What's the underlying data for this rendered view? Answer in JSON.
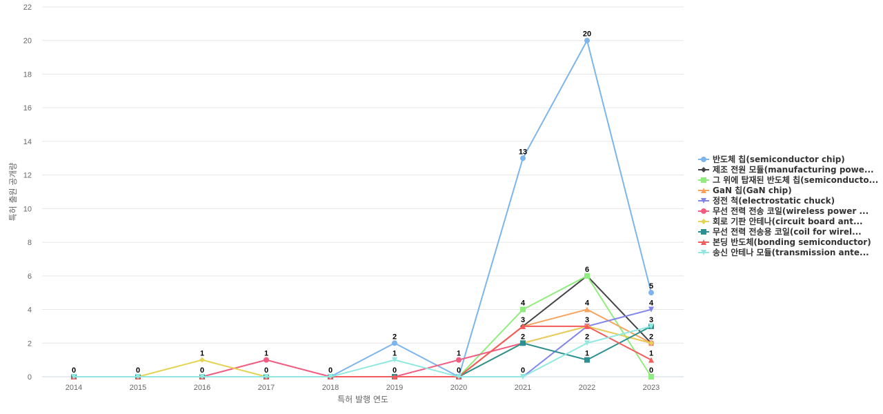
{
  "chart_data": {
    "type": "line",
    "title": "",
    "xlabel": "특허 발행 연도",
    "ylabel": "특허 출원 공개량",
    "x": [
      "2014",
      "2015",
      "2016",
      "2017",
      "2018",
      "2019",
      "2020",
      "2021",
      "2022",
      "2023"
    ],
    "ylim": [
      0,
      22
    ],
    "yticks": [
      0,
      2,
      4,
      6,
      8,
      10,
      12,
      14,
      16,
      18,
      20,
      22
    ],
    "grid": true,
    "legend_position": "right",
    "series": [
      {
        "name": "반도체 칩(semiconductor chip)",
        "color": "#7cb5ec",
        "marker": "circle",
        "values": [
          0,
          0,
          0,
          0,
          0,
          2,
          0,
          13,
          20,
          5
        ]
      },
      {
        "name": "제조 전원 모듈(manufacturing powe...",
        "color": "#434348",
        "marker": "diamond",
        "values": [
          0,
          0,
          0,
          0,
          0,
          0,
          0,
          3,
          6,
          2
        ]
      },
      {
        "name": "그 위에 탑재된 반도체 칩(semiconducto...",
        "color": "#90ed7d",
        "marker": "square",
        "values": [
          0,
          0,
          0,
          0,
          0,
          0,
          0,
          4,
          6,
          0
        ]
      },
      {
        "name": "GaN 칩(GaN chip)",
        "color": "#f7a35c",
        "marker": "triangle",
        "values": [
          0,
          0,
          0,
          0,
          0,
          0,
          0,
          3,
          4,
          2
        ]
      },
      {
        "name": "정전 척(electrostatic chuck)",
        "color": "#8085e9",
        "marker": "triangle-down",
        "values": [
          0,
          0,
          0,
          0,
          0,
          0,
          0,
          0,
          3,
          4
        ]
      },
      {
        "name": "무선 전력 전송 코일(wireless power ...",
        "color": "#f15c80",
        "marker": "circle",
        "values": [
          0,
          0,
          0,
          1,
          0,
          0,
          1,
          2,
          3,
          2
        ]
      },
      {
        "name": "회로 기판 안테나(circuit board ant...",
        "color": "#e4d354",
        "marker": "diamond",
        "values": [
          0,
          0,
          1,
          0,
          0,
          0,
          0,
          2,
          3,
          2
        ]
      },
      {
        "name": "무선 전력 전송용 코일(coil for wirel...",
        "color": "#2b908f",
        "marker": "square",
        "values": [
          0,
          0,
          0,
          0,
          0,
          0,
          0,
          2,
          1,
          3
        ]
      },
      {
        "name": "본딩 반도체(bonding semiconductor)",
        "color": "#f45b5b",
        "marker": "triangle",
        "values": [
          0,
          0,
          0,
          0,
          0,
          0,
          0,
          3,
          3,
          1
        ]
      },
      {
        "name": "송신 안테나 모듈(transmission ante...",
        "color": "#91e8e1",
        "marker": "triangle-down",
        "values": [
          0,
          0,
          0,
          0,
          0,
          1,
          0,
          0,
          2,
          3
        ]
      }
    ],
    "data_labels": [
      {
        "x": "2014",
        "text": "0",
        "y": 0
      },
      {
        "x": "2015",
        "text": "0",
        "y": 0
      },
      {
        "x": "2016",
        "text": "1",
        "y": 1
      },
      {
        "x": "2016",
        "text": "0",
        "y": 0
      },
      {
        "x": "2017",
        "text": "1",
        "y": 1
      },
      {
        "x": "2017",
        "text": "0",
        "y": 0
      },
      {
        "x": "2018",
        "text": "0",
        "y": 0
      },
      {
        "x": "2019",
        "text": "2",
        "y": 2
      },
      {
        "x": "2019",
        "text": "1",
        "y": 1
      },
      {
        "x": "2019",
        "text": "0",
        "y": 0
      },
      {
        "x": "2020",
        "text": "1",
        "y": 1
      },
      {
        "x": "2020",
        "text": "0",
        "y": 0
      },
      {
        "x": "2021",
        "text": "13",
        "y": 13
      },
      {
        "x": "2021",
        "text": "4",
        "y": 4
      },
      {
        "x": "2021",
        "text": "3",
        "y": 3
      },
      {
        "x": "2021",
        "text": "2",
        "y": 2
      },
      {
        "x": "2021",
        "text": "0",
        "y": 0
      },
      {
        "x": "2022",
        "text": "20",
        "y": 20
      },
      {
        "x": "2022",
        "text": "6",
        "y": 6
      },
      {
        "x": "2022",
        "text": "4",
        "y": 4
      },
      {
        "x": "2022",
        "text": "3",
        "y": 3
      },
      {
        "x": "2022",
        "text": "2",
        "y": 2
      },
      {
        "x": "2022",
        "text": "1",
        "y": 1
      },
      {
        "x": "2023",
        "text": "5",
        "y": 5
      },
      {
        "x": "2023",
        "text": "4",
        "y": 4
      },
      {
        "x": "2023",
        "text": "3",
        "y": 3
      },
      {
        "x": "2023",
        "text": "2",
        "y": 2
      },
      {
        "x": "2023",
        "text": "1",
        "y": 1
      },
      {
        "x": "2023",
        "text": "0",
        "y": 0
      }
    ]
  }
}
